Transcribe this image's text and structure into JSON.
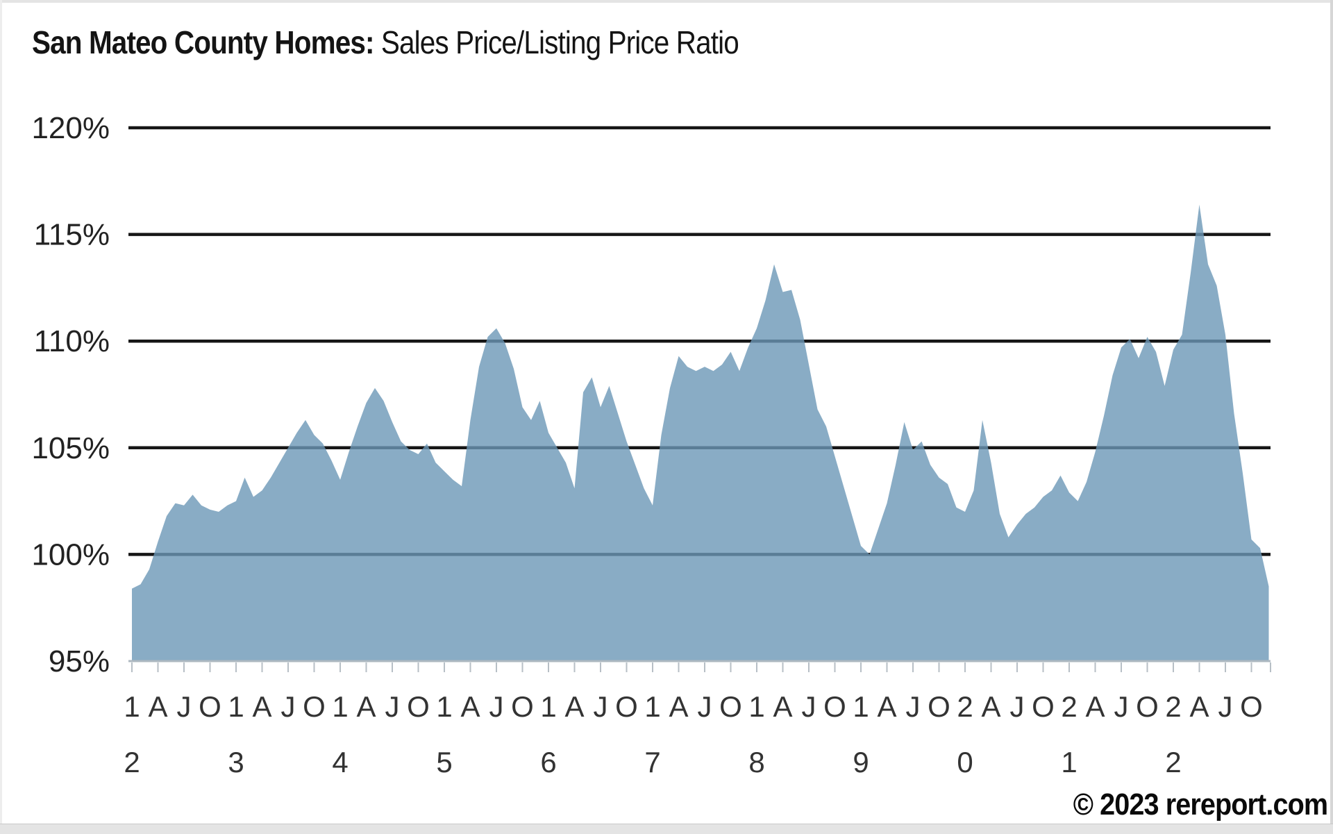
{
  "title": {
    "bold": "San Mateo County Homes:",
    "regular": " Sales Price/Listing Price Ratio"
  },
  "footer": {
    "copyright": "© 2023 rereport.com"
  },
  "chart_data": {
    "type": "area",
    "title": "San Mateo County Homes: Sales Price/Listing Price Ratio",
    "xlabel": "",
    "ylabel": "",
    "ylim": [
      95,
      120
    ],
    "y_ticks": [
      95,
      100,
      105,
      110,
      115,
      120
    ],
    "y_tick_suffix": "%",
    "grid": "horizontal-black-lines, drawn behind semi-transparent area fill",
    "legend_position": "none",
    "x_axis": {
      "frequency": "monthly",
      "start": "2012-01",
      "end": "2022-12",
      "tick_interval": "quarterly",
      "quarter_letters": [
        "A",
        "J",
        "O"
      ],
      "year_labels_stacked": [
        "12",
        "13",
        "14",
        "15",
        "16",
        "17",
        "18",
        "19",
        "20",
        "21",
        "22"
      ]
    },
    "series": [
      {
        "name": "Sales Price/Listing Price Ratio",
        "unit": "%",
        "values": [
          98.4,
          98.6,
          99.3,
          100.6,
          101.8,
          102.4,
          102.3,
          102.8,
          102.3,
          102.1,
          102.0,
          102.3,
          102.5,
          103.6,
          102.7,
          103.0,
          103.6,
          104.3,
          105.0,
          105.7,
          106.3,
          105.6,
          105.2,
          104.4,
          103.5,
          104.8,
          106.0,
          107.1,
          107.8,
          107.2,
          106.2,
          105.3,
          104.9,
          104.7,
          105.2,
          104.3,
          103.9,
          103.5,
          103.2,
          106.3,
          108.8,
          110.2,
          110.6,
          109.9,
          108.7,
          106.9,
          106.3,
          107.2,
          105.7,
          105.0,
          104.3,
          103.1,
          107.6,
          108.3,
          106.9,
          107.9,
          106.6,
          105.3,
          104.2,
          103.1,
          102.3,
          105.6,
          107.8,
          109.3,
          108.8,
          108.6,
          108.8,
          108.6,
          108.9,
          109.5,
          108.6,
          109.7,
          110.6,
          111.9,
          113.6,
          112.3,
          112.4,
          111.0,
          108.9,
          106.8,
          106.0,
          104.6,
          103.2,
          101.8,
          100.4,
          100.0,
          101.2,
          102.4,
          104.2,
          106.2,
          104.9,
          105.3,
          104.2,
          103.6,
          103.3,
          102.2,
          102.0,
          103.0,
          106.3,
          104.3,
          101.9,
          100.8,
          101.4,
          101.9,
          102.2,
          102.7,
          103.0,
          103.7,
          102.9,
          102.5,
          103.4,
          104.8,
          106.5,
          108.4,
          109.7,
          110.1,
          109.2,
          110.2,
          109.5,
          107.9,
          109.6,
          110.3,
          113.2,
          116.4,
          113.6,
          112.6,
          110.3,
          106.6,
          103.8,
          100.7,
          100.3,
          98.5
        ]
      }
    ],
    "colors": {
      "area_fill": "#6C97B7",
      "area_fill_opacity": 0.8,
      "area_rendered_tone": "#8BADC6",
      "gridline": "#161616",
      "baseline_axis": "#ADB8C0",
      "tick_mark": "#B7BFC6",
      "axis_label": "#333333",
      "y_label": "#222222",
      "title_text": "#141414"
    }
  }
}
